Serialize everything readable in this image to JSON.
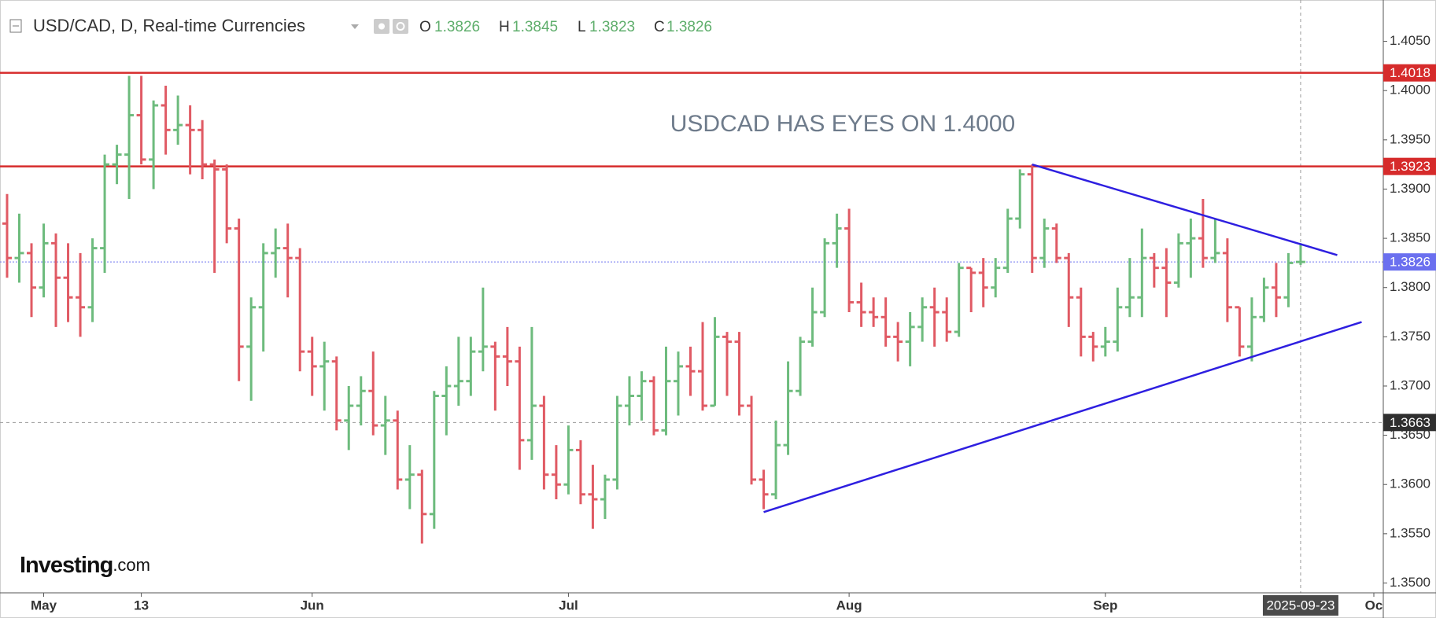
{
  "chart_data": {
    "type": "ohlc",
    "title": "USD/CAD, D, Real-time Currencies",
    "ohlc_labels": [
      "O",
      "H",
      "L",
      "C"
    ],
    "annotation": "USDCAD HAS EYES ON 1.4000",
    "logo": "Investing",
    "logo_suffix": ".com",
    "up_color": "#6dbb7d",
    "down_color": "#e05a64",
    "x": [
      "2025-04-28",
      "2025-04-29",
      "2025-04-30",
      "2025-05-01",
      "2025-05-02",
      "2025-05-05",
      "2025-05-06",
      "2025-05-07",
      "2025-05-08",
      "2025-05-09",
      "2025-05-12",
      "2025-05-13",
      "2025-05-14",
      "2025-05-15",
      "2025-05-16",
      "2025-05-19",
      "2025-05-20",
      "2025-05-21",
      "2025-05-22",
      "2025-05-23",
      "2025-05-26",
      "2025-05-27",
      "2025-05-28",
      "2025-05-29",
      "2025-05-30",
      "2025-06-02",
      "2025-06-03",
      "2025-06-04",
      "2025-06-05",
      "2025-06-06",
      "2025-06-09",
      "2025-06-10",
      "2025-06-11",
      "2025-06-12",
      "2025-06-13",
      "2025-06-16",
      "2025-06-17",
      "2025-06-18",
      "2025-06-19",
      "2025-06-20",
      "2025-06-23",
      "2025-06-24",
      "2025-06-25",
      "2025-06-26",
      "2025-06-27",
      "2025-06-30",
      "2025-07-01",
      "2025-07-02",
      "2025-07-03",
      "2025-07-04",
      "2025-07-07",
      "2025-07-08",
      "2025-07-09",
      "2025-07-10",
      "2025-07-11",
      "2025-07-14",
      "2025-07-15",
      "2025-07-16",
      "2025-07-17",
      "2025-07-18",
      "2025-07-21",
      "2025-07-22",
      "2025-07-23",
      "2025-07-24",
      "2025-07-25",
      "2025-07-28",
      "2025-07-29",
      "2025-07-30",
      "2025-07-31",
      "2025-08-01",
      "2025-08-04",
      "2025-08-05",
      "2025-08-06",
      "2025-08-07",
      "2025-08-08",
      "2025-08-11",
      "2025-08-12",
      "2025-08-13",
      "2025-08-14",
      "2025-08-15",
      "2025-08-18",
      "2025-08-19",
      "2025-08-20",
      "2025-08-21",
      "2025-08-22",
      "2025-08-25",
      "2025-08-26",
      "2025-08-27",
      "2025-08-28",
      "2025-08-29",
      "2025-09-01",
      "2025-09-02",
      "2025-09-03",
      "2025-09-04",
      "2025-09-05",
      "2025-09-08",
      "2025-09-09",
      "2025-09-10",
      "2025-09-11",
      "2025-09-12",
      "2025-09-15",
      "2025-09-16",
      "2025-09-17",
      "2025-09-18",
      "2025-09-19",
      "2025-09-22",
      "2025-09-23"
    ],
    "open": [
      1.3865,
      1.383,
      1.3835,
      1.38,
      1.3845,
      1.381,
      1.379,
      1.378,
      1.384,
      1.3925,
      1.3935,
      1.3975,
      1.393,
      1.3985,
      1.396,
      1.3965,
      1.396,
      1.3925,
      1.392,
      1.386,
      1.374,
      1.378,
      1.3835,
      1.384,
      1.383,
      1.3735,
      1.372,
      1.3725,
      1.3665,
      1.368,
      1.3695,
      1.366,
      1.3665,
      1.3605,
      1.361,
      1.357,
      1.369,
      1.37,
      1.3705,
      1.3735,
      1.374,
      1.373,
      1.3725,
      1.3645,
      1.368,
      1.361,
      1.36,
      1.3635,
      1.359,
      1.3585,
      1.3605,
      1.368,
      1.369,
      1.3705,
      1.3655,
      1.3705,
      1.372,
      1.3715,
      1.368,
      1.375,
      1.3745,
      1.368,
      1.3605,
      1.359,
      1.364,
      1.3695,
      1.3745,
      1.3775,
      1.3845,
      1.386,
      1.3785,
      1.3775,
      1.377,
      1.375,
      1.3745,
      1.376,
      1.378,
      1.3775,
      1.3755,
      1.382,
      1.3815,
      1.38,
      1.382,
      1.387,
      1.3915,
      1.383,
      1.386,
      1.383,
      1.379,
      1.375,
      1.374,
      1.3745,
      1.378,
      1.379,
      1.383,
      1.382,
      1.3805,
      1.3845,
      1.385,
      1.383,
      1.3835,
      1.378,
      1.374,
      1.377,
      1.38,
      1.379,
      1.3826
    ],
    "high": [
      1.3895,
      1.3875,
      1.3845,
      1.3865,
      1.3855,
      1.3845,
      1.3835,
      1.385,
      1.3935,
      1.3945,
      1.4015,
      1.4015,
      1.399,
      1.4005,
      1.3995,
      1.3985,
      1.397,
      1.393,
      1.3925,
      1.387,
      1.379,
      1.3845,
      1.386,
      1.3865,
      1.384,
      1.375,
      1.3745,
      1.373,
      1.37,
      1.371,
      1.3735,
      1.369,
      1.3675,
      1.364,
      1.3615,
      1.3695,
      1.372,
      1.375,
      1.375,
      1.38,
      1.3745,
      1.376,
      1.374,
      1.376,
      1.369,
      1.364,
      1.366,
      1.3645,
      1.362,
      1.361,
      1.369,
      1.371,
      1.3715,
      1.371,
      1.374,
      1.3735,
      1.374,
      1.3765,
      1.377,
      1.3755,
      1.3755,
      1.369,
      1.3615,
      1.3665,
      1.3725,
      1.375,
      1.38,
      1.385,
      1.3875,
      1.388,
      1.3805,
      1.379,
      1.379,
      1.3765,
      1.3775,
      1.379,
      1.38,
      1.379,
      1.3825,
      1.382,
      1.383,
      1.383,
      1.388,
      1.392,
      1.3925,
      1.387,
      1.3865,
      1.3835,
      1.38,
      1.3755,
      1.376,
      1.38,
      1.383,
      1.386,
      1.3835,
      1.384,
      1.3855,
      1.387,
      1.389,
      1.387,
      1.385,
      1.378,
      1.379,
      1.381,
      1.3825,
      1.3835,
      1.3845
    ],
    "low": [
      1.381,
      1.3805,
      1.377,
      1.379,
      1.376,
      1.3765,
      1.375,
      1.3765,
      1.3815,
      1.3905,
      1.389,
      1.3925,
      1.39,
      1.3935,
      1.3945,
      1.3915,
      1.391,
      1.3815,
      1.3845,
      1.3705,
      1.3685,
      1.3735,
      1.381,
      1.379,
      1.3715,
      1.369,
      1.3675,
      1.3655,
      1.3635,
      1.366,
      1.365,
      1.363,
      1.3595,
      1.3575,
      1.354,
      1.3555,
      1.365,
      1.368,
      1.369,
      1.3715,
      1.3675,
      1.37,
      1.3615,
      1.3625,
      1.3595,
      1.3585,
      1.359,
      1.358,
      1.3555,
      1.3565,
      1.3595,
      1.366,
      1.3665,
      1.365,
      1.365,
      1.367,
      1.369,
      1.3675,
      1.368,
      1.369,
      1.367,
      1.36,
      1.3575,
      1.3585,
      1.363,
      1.369,
      1.374,
      1.377,
      1.382,
      1.3775,
      1.376,
      1.376,
      1.374,
      1.3725,
      1.372,
      1.3745,
      1.374,
      1.3745,
      1.375,
      1.3775,
      1.378,
      1.379,
      1.3815,
      1.386,
      1.3815,
      1.382,
      1.3825,
      1.376,
      1.373,
      1.3725,
      1.373,
      1.3735,
      1.377,
      1.377,
      1.38,
      1.377,
      1.38,
      1.381,
      1.382,
      1.3825,
      1.3765,
      1.373,
      1.3725,
      1.3765,
      1.377,
      1.378,
      1.3823
    ],
    "close": [
      1.383,
      1.3835,
      1.38,
      1.3845,
      1.381,
      1.379,
      1.378,
      1.384,
      1.3925,
      1.3935,
      1.3975,
      1.393,
      1.3985,
      1.396,
      1.3965,
      1.396,
      1.3925,
      1.392,
      1.386,
      1.374,
      1.378,
      1.3835,
      1.384,
      1.383,
      1.3735,
      1.372,
      1.3725,
      1.3665,
      1.368,
      1.3695,
      1.366,
      1.3665,
      1.3605,
      1.361,
      1.357,
      1.369,
      1.37,
      1.3705,
      1.3735,
      1.374,
      1.373,
      1.3725,
      1.3645,
      1.368,
      1.361,
      1.36,
      1.3635,
      1.359,
      1.3585,
      1.3605,
      1.368,
      1.369,
      1.3705,
      1.3655,
      1.3705,
      1.372,
      1.3715,
      1.368,
      1.375,
      1.3745,
      1.368,
      1.3605,
      1.359,
      1.364,
      1.3695,
      1.3745,
      1.3775,
      1.3845,
      1.386,
      1.3785,
      1.3775,
      1.377,
      1.375,
      1.3745,
      1.376,
      1.378,
      1.3775,
      1.3755,
      1.382,
      1.3815,
      1.38,
      1.382,
      1.387,
      1.3915,
      1.383,
      1.386,
      1.383,
      1.379,
      1.375,
      1.374,
      1.3745,
      1.378,
      1.379,
      1.383,
      1.382,
      1.3805,
      1.3845,
      1.385,
      1.383,
      1.3835,
      1.378,
      1.374,
      1.377,
      1.38,
      1.379,
      1.3825,
      1.3826
    ],
    "xlim": [
      "2025-04-28",
      "2025-10-01"
    ],
    "xticks": [
      {
        "value": "2025-05-01",
        "label": "May"
      },
      {
        "value": "2025-05-13",
        "label": "13"
      },
      {
        "value": "2025-06-02",
        "label": "Jun"
      },
      {
        "value": "2025-07-01",
        "label": "Jul"
      },
      {
        "value": "2025-08-01",
        "label": "Aug"
      },
      {
        "value": "2025-09-01",
        "label": "Sep"
      },
      {
        "value": "2025-10-01",
        "label": "Oc"
      }
    ],
    "ylim": [
      1.349,
      1.4092
    ],
    "yticks": [
      {
        "value": 1.405,
        "label": "1.4050"
      },
      {
        "value": 1.4,
        "label": "1.4000"
      },
      {
        "value": 1.395,
        "label": "1.3950"
      },
      {
        "value": 1.39,
        "label": "1.3900"
      },
      {
        "value": 1.385,
        "label": "1.3850"
      },
      {
        "value": 1.38,
        "label": "1.3800"
      },
      {
        "value": 1.375,
        "label": "1.3750"
      },
      {
        "value": 1.37,
        "label": "1.3700"
      },
      {
        "value": 1.365,
        "label": "1.3650"
      },
      {
        "value": 1.36,
        "label": "1.3600"
      },
      {
        "value": 1.355,
        "label": "1.3550"
      },
      {
        "value": 1.35,
        "label": "1.3500"
      }
    ],
    "hlines": [
      {
        "value": 1.4018,
        "color": "#d62b2b"
      },
      {
        "value": 1.3923,
        "color": "#d62b2b"
      }
    ],
    "last_price_color": "#6b70ef",
    "trendlines": [
      {
        "x": [
          "2025-08-22",
          "2025-09-26"
        ],
        "y": [
          1.3925,
          1.3833
        ],
        "color": "#2e1fe0"
      },
      {
        "x": [
          "2025-07-23",
          "2025-09-30"
        ],
        "y": [
          1.3572,
          1.3765
        ],
        "color": "#2e1fe0"
      }
    ],
    "crosshair": {
      "x": "2025-09-23",
      "y": 1.3663,
      "color": "#9a9a9a"
    }
  }
}
